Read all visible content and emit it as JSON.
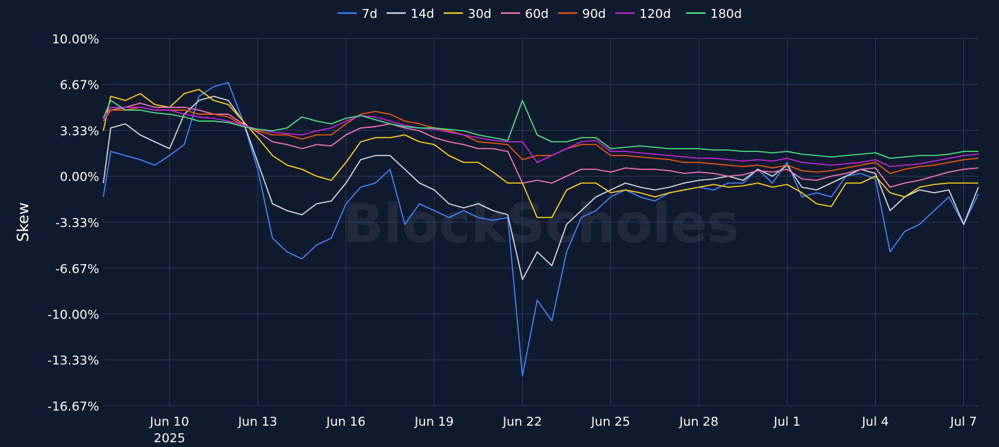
{
  "chart_data": {
    "type": "line",
    "title": "",
    "xlabel": "",
    "ylabel": "Skew",
    "watermark": "BlockScholes",
    "legend_position": "top-center",
    "grid": true,
    "ylim": [
      -16.67,
      10.0
    ],
    "y_ticks": [
      {
        "value": 10.0,
        "label": "10.00%"
      },
      {
        "value": 6.67,
        "label": "6.67%"
      },
      {
        "value": 3.33,
        "label": "3.33%"
      },
      {
        "value": 0.0,
        "label": "0.00%"
      },
      {
        "value": -3.33,
        "label": "-3.33%"
      },
      {
        "value": -6.67,
        "label": "-6.67%"
      },
      {
        "value": -10.0,
        "label": "-10.00%"
      },
      {
        "value": -13.33,
        "label": "-13.33%"
      },
      {
        "value": -16.67,
        "label": "-16.67%"
      }
    ],
    "xlim": [
      "2025-06-07T18:00",
      "2025-07-07T12:00"
    ],
    "x_ticks": [
      {
        "value": "2025-06-10",
        "label": "Jun 10",
        "sublabel": "2025"
      },
      {
        "value": "2025-06-13",
        "label": "Jun 13"
      },
      {
        "value": "2025-06-16",
        "label": "Jun 16"
      },
      {
        "value": "2025-06-19",
        "label": "Jun 19"
      },
      {
        "value": "2025-06-22",
        "label": "Jun 22"
      },
      {
        "value": "2025-06-25",
        "label": "Jun 25"
      },
      {
        "value": "2025-06-28",
        "label": "Jun 28"
      },
      {
        "value": "2025-07-01",
        "label": "Jul 1"
      },
      {
        "value": "2025-07-04",
        "label": "Jul 4"
      },
      {
        "value": "2025-07-07",
        "label": "Jul 7"
      }
    ],
    "x": [
      "2025-06-07T18:00",
      "2025-06-08T00:00",
      "2025-06-08T12:00",
      "2025-06-09T00:00",
      "2025-06-09T12:00",
      "2025-06-10T00:00",
      "2025-06-10T12:00",
      "2025-06-11T00:00",
      "2025-06-11T12:00",
      "2025-06-12T00:00",
      "2025-06-12T12:00",
      "2025-06-13T00:00",
      "2025-06-13T12:00",
      "2025-06-14T00:00",
      "2025-06-14T12:00",
      "2025-06-15T00:00",
      "2025-06-15T12:00",
      "2025-06-16T00:00",
      "2025-06-16T12:00",
      "2025-06-17T00:00",
      "2025-06-17T12:00",
      "2025-06-18T00:00",
      "2025-06-18T12:00",
      "2025-06-19T00:00",
      "2025-06-19T12:00",
      "2025-06-20T00:00",
      "2025-06-20T12:00",
      "2025-06-21T00:00",
      "2025-06-21T12:00",
      "2025-06-22T00:00",
      "2025-06-22T12:00",
      "2025-06-23T00:00",
      "2025-06-23T12:00",
      "2025-06-24T00:00",
      "2025-06-24T12:00",
      "2025-06-25T00:00",
      "2025-06-25T12:00",
      "2025-06-26T00:00",
      "2025-06-26T12:00",
      "2025-06-27T00:00",
      "2025-06-27T12:00",
      "2025-06-28T00:00",
      "2025-06-28T12:00",
      "2025-06-29T00:00",
      "2025-06-29T12:00",
      "2025-06-30T00:00",
      "2025-06-30T12:00",
      "2025-07-01T00:00",
      "2025-07-01T12:00",
      "2025-07-02T00:00",
      "2025-07-02T12:00",
      "2025-07-03T00:00",
      "2025-07-03T12:00",
      "2025-07-04T00:00",
      "2025-07-04T12:00",
      "2025-07-05T00:00",
      "2025-07-05T12:00",
      "2025-07-06T00:00",
      "2025-07-06T12:00",
      "2025-07-07T00:00",
      "2025-07-07T12:00"
    ],
    "series": [
      {
        "name": "7d",
        "color": "#3b82f6",
        "values": [
          -1.5,
          1.8,
          1.5,
          1.2,
          0.8,
          1.5,
          2.3,
          5.8,
          6.5,
          6.8,
          4.0,
          0.5,
          -4.5,
          -5.5,
          -6.0,
          -5.0,
          -4.5,
          -2.0,
          -0.8,
          -0.5,
          0.5,
          -3.5,
          -2.0,
          -2.5,
          -3.0,
          -2.5,
          -3.0,
          -3.2,
          -3.0,
          -14.5,
          -9.0,
          -10.5,
          -5.5,
          -3.0,
          -2.5,
          -1.5,
          -1.0,
          -1.5,
          -1.8,
          -1.2,
          -1.0,
          -0.8,
          -1.0,
          -0.5,
          -0.5,
          0.5,
          -0.5,
          1.0,
          -1.5,
          -1.2,
          -1.5,
          0.0,
          0.2,
          -0.2,
          -5.5,
          -4.0,
          -3.5,
          -2.5,
          -1.5,
          -3.5,
          -1.3
        ]
      },
      {
        "name": "14d",
        "color": "#d1d5db",
        "values": [
          -0.5,
          3.5,
          3.8,
          3.0,
          2.5,
          2.0,
          4.5,
          5.5,
          5.8,
          5.5,
          4.0,
          1.0,
          -2.0,
          -2.5,
          -2.8,
          -2.0,
          -1.8,
          -0.5,
          1.2,
          1.5,
          1.5,
          0.5,
          -0.5,
          -1.0,
          -2.0,
          -2.3,
          -2.0,
          -2.5,
          -2.8,
          -7.5,
          -5.5,
          -6.5,
          -3.5,
          -2.5,
          -1.5,
          -1.0,
          -0.5,
          -0.8,
          -1.0,
          -0.8,
          -0.5,
          -0.3,
          -0.2,
          0.0,
          -0.3,
          0.5,
          0.0,
          0.8,
          -0.8,
          -1.0,
          -0.5,
          0.0,
          0.5,
          0.2,
          -2.5,
          -1.5,
          -1.0,
          -1.2,
          -1.0,
          -3.5,
          -0.8
        ]
      },
      {
        "name": "30d",
        "color": "#facc15",
        "values": [
          3.3,
          5.8,
          5.5,
          6.0,
          5.2,
          5.0,
          6.0,
          6.3,
          5.5,
          5.2,
          4.0,
          2.8,
          1.5,
          0.8,
          0.5,
          0.0,
          -0.3,
          1.0,
          2.5,
          2.8,
          2.8,
          3.0,
          2.5,
          2.3,
          1.5,
          1.0,
          1.0,
          0.3,
          -0.5,
          -0.5,
          -3.0,
          -3.0,
          -1.0,
          -0.5,
          -0.5,
          -1.2,
          -1.0,
          -1.2,
          -1.5,
          -1.2,
          -1.0,
          -0.8,
          -0.6,
          -0.8,
          -0.7,
          -0.5,
          -0.8,
          -0.6,
          -1.2,
          -2.0,
          -2.2,
          -0.5,
          -0.5,
          0.0,
          -1.2,
          -1.5,
          -0.8,
          -0.6,
          -0.5,
          -0.5,
          -0.5
        ]
      },
      {
        "name": "60d",
        "color": "#f472b6",
        "values": [
          4.0,
          4.8,
          5.0,
          5.3,
          5.0,
          5.0,
          5.0,
          4.8,
          4.5,
          4.5,
          3.8,
          3.2,
          2.5,
          2.3,
          2.0,
          2.3,
          2.2,
          3.0,
          3.5,
          3.6,
          3.8,
          3.5,
          3.3,
          2.8,
          2.5,
          2.3,
          2.0,
          2.0,
          1.8,
          -0.5,
          -0.3,
          -0.5,
          0.0,
          0.5,
          0.5,
          0.3,
          0.6,
          0.5,
          0.5,
          0.4,
          0.2,
          0.3,
          0.2,
          0.0,
          0.1,
          0.4,
          0.3,
          0.5,
          -0.2,
          -0.3,
          0.0,
          0.2,
          0.5,
          0.6,
          -0.8,
          -0.5,
          -0.3,
          0.0,
          0.3,
          0.5,
          0.6
        ]
      },
      {
        "name": "90d",
        "color": "#ea580c",
        "values": [
          4.0,
          4.8,
          4.8,
          5.0,
          4.8,
          4.8,
          4.8,
          4.5,
          4.5,
          4.3,
          3.7,
          3.3,
          3.0,
          3.0,
          2.7,
          3.0,
          3.0,
          3.8,
          4.5,
          4.7,
          4.5,
          4.0,
          3.8,
          3.5,
          3.3,
          3.0,
          2.5,
          2.4,
          2.3,
          1.2,
          1.5,
          1.5,
          2.0,
          2.3,
          2.3,
          1.5,
          1.5,
          1.4,
          1.3,
          1.2,
          1.0,
          1.0,
          0.9,
          0.8,
          0.7,
          0.8,
          0.6,
          0.8,
          0.4,
          0.3,
          0.4,
          0.6,
          0.8,
          1.0,
          0.2,
          0.5,
          0.7,
          0.8,
          1.0,
          1.2,
          1.3
        ]
      },
      {
        "name": "120d",
        "color": "#c026d3",
        "values": [
          4.0,
          5.0,
          5.0,
          5.0,
          4.8,
          4.8,
          4.5,
          4.3,
          4.2,
          4.0,
          3.7,
          3.4,
          3.2,
          3.1,
          3.0,
          3.3,
          3.5,
          4.0,
          4.4,
          4.3,
          4.0,
          3.7,
          3.5,
          3.4,
          3.2,
          3.0,
          2.8,
          2.6,
          2.5,
          2.5,
          1.0,
          1.5,
          2.0,
          2.5,
          2.6,
          1.8,
          1.8,
          1.7,
          1.6,
          1.5,
          1.4,
          1.3,
          1.3,
          1.2,
          1.1,
          1.2,
          1.1,
          1.3,
          1.0,
          0.9,
          0.8,
          0.9,
          1.0,
          1.2,
          0.7,
          0.8,
          0.9,
          1.1,
          1.3,
          1.5,
          1.6
        ]
      },
      {
        "name": "180d",
        "color": "#4ade80",
        "values": [
          4.2,
          5.5,
          4.8,
          4.8,
          4.6,
          4.5,
          4.3,
          4.0,
          4.0,
          3.9,
          3.6,
          3.4,
          3.3,
          3.5,
          4.3,
          4.0,
          3.8,
          4.2,
          4.4,
          4.1,
          3.8,
          3.6,
          3.5,
          3.5,
          3.4,
          3.3,
          3.0,
          2.8,
          2.6,
          5.5,
          3.0,
          2.5,
          2.5,
          2.8,
          2.8,
          2.0,
          2.1,
          2.2,
          2.1,
          2.0,
          2.0,
          2.0,
          1.9,
          1.9,
          1.8,
          1.8,
          1.7,
          1.8,
          1.6,
          1.5,
          1.4,
          1.5,
          1.6,
          1.7,
          1.3,
          1.4,
          1.5,
          1.5,
          1.6,
          1.8,
          1.8
        ]
      }
    ]
  }
}
